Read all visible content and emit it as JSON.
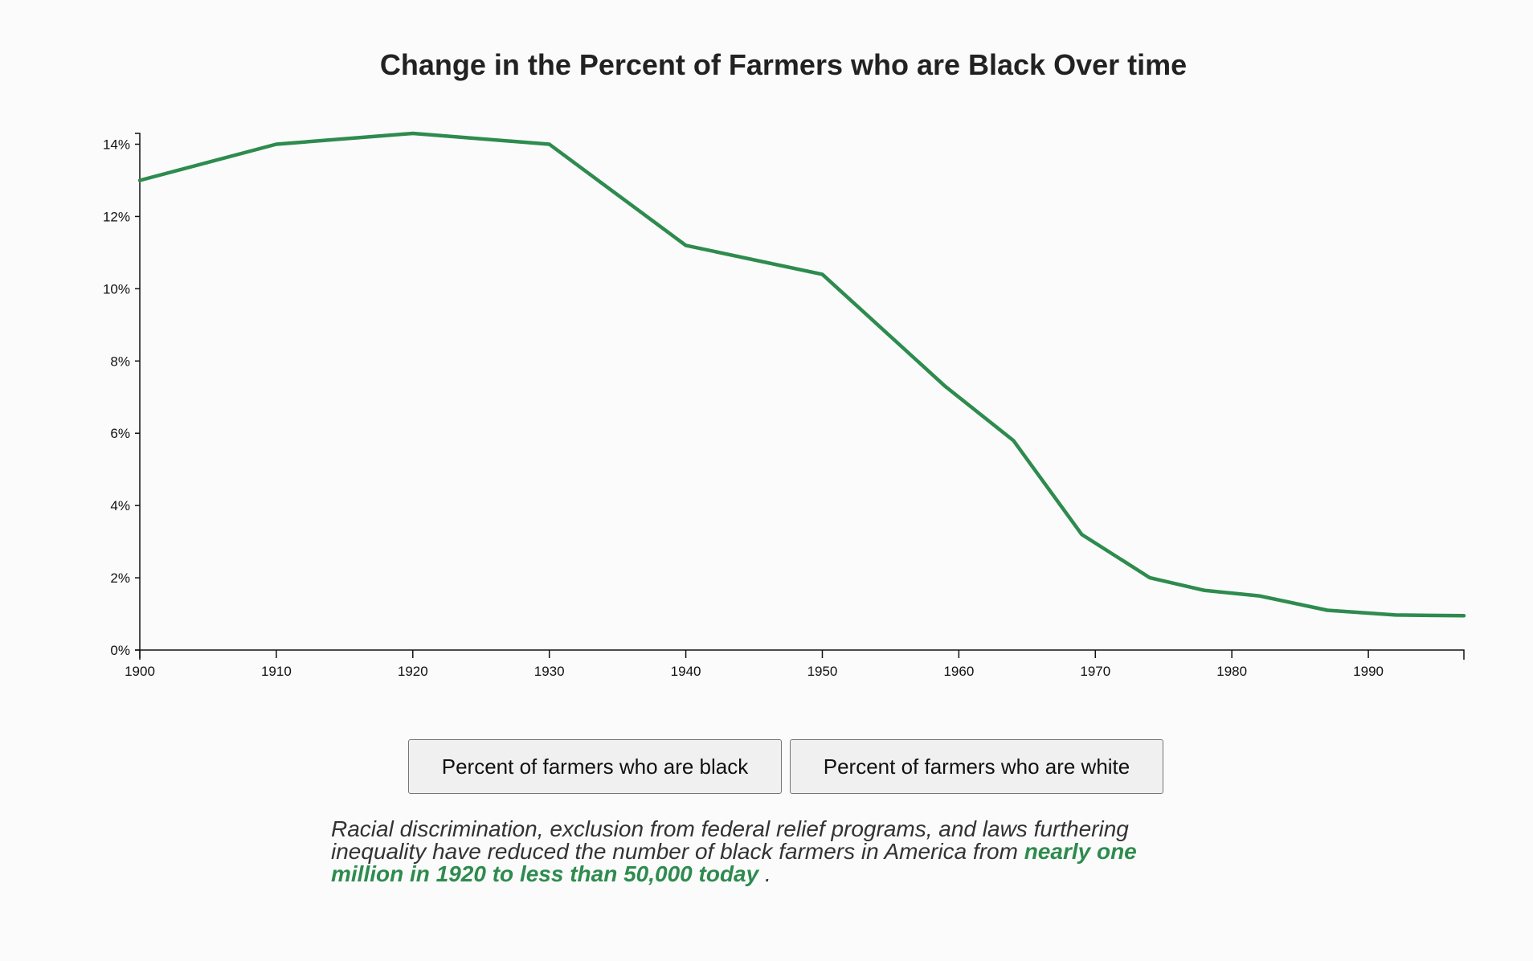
{
  "chart_data": {
    "type": "line",
    "title": "Change in the Percent of Farmers who are Black Over time",
    "xlabel": "",
    "ylabel": "",
    "x": [
      1900,
      1910,
      1920,
      1930,
      1940,
      1950,
      1959,
      1964,
      1969,
      1974,
      1978,
      1982,
      1987,
      1992,
      1997
    ],
    "series": [
      {
        "values": [
          13.0,
          14.0,
          14.3,
          14.0,
          11.2,
          10.4,
          7.3,
          5.8,
          3.2,
          2.0,
          1.65,
          1.5,
          1.1,
          0.97,
          0.95
        ],
        "color": "#2e8b4e"
      }
    ],
    "xlim": [
      1900,
      1997
    ],
    "ylim": [
      0,
      14.3
    ],
    "x_ticks": [
      "1900",
      "1910",
      "1920",
      "1930",
      "1940",
      "1950",
      "1960",
      "1970",
      "1980",
      "1990"
    ],
    "y_ticks": [
      "0%",
      "2%",
      "4%",
      "6%",
      "8%",
      "10%",
      "12%",
      "14%"
    ],
    "grid": false,
    "legend": "none"
  },
  "buttons": {
    "black_label": "Percent of farmers who are black",
    "white_label": "Percent of farmers who are white"
  },
  "caption": {
    "text": "Racial discrimination, exclusion from federal relief programs, and laws furthering inequality have reduced the number of black farmers in America from ",
    "highlight": "nearly one million in 1920 to less than 50,000 today",
    "suffix": " ."
  },
  "colors": {
    "line": "#2e8b4e",
    "highlight": "#2e8b4e"
  }
}
